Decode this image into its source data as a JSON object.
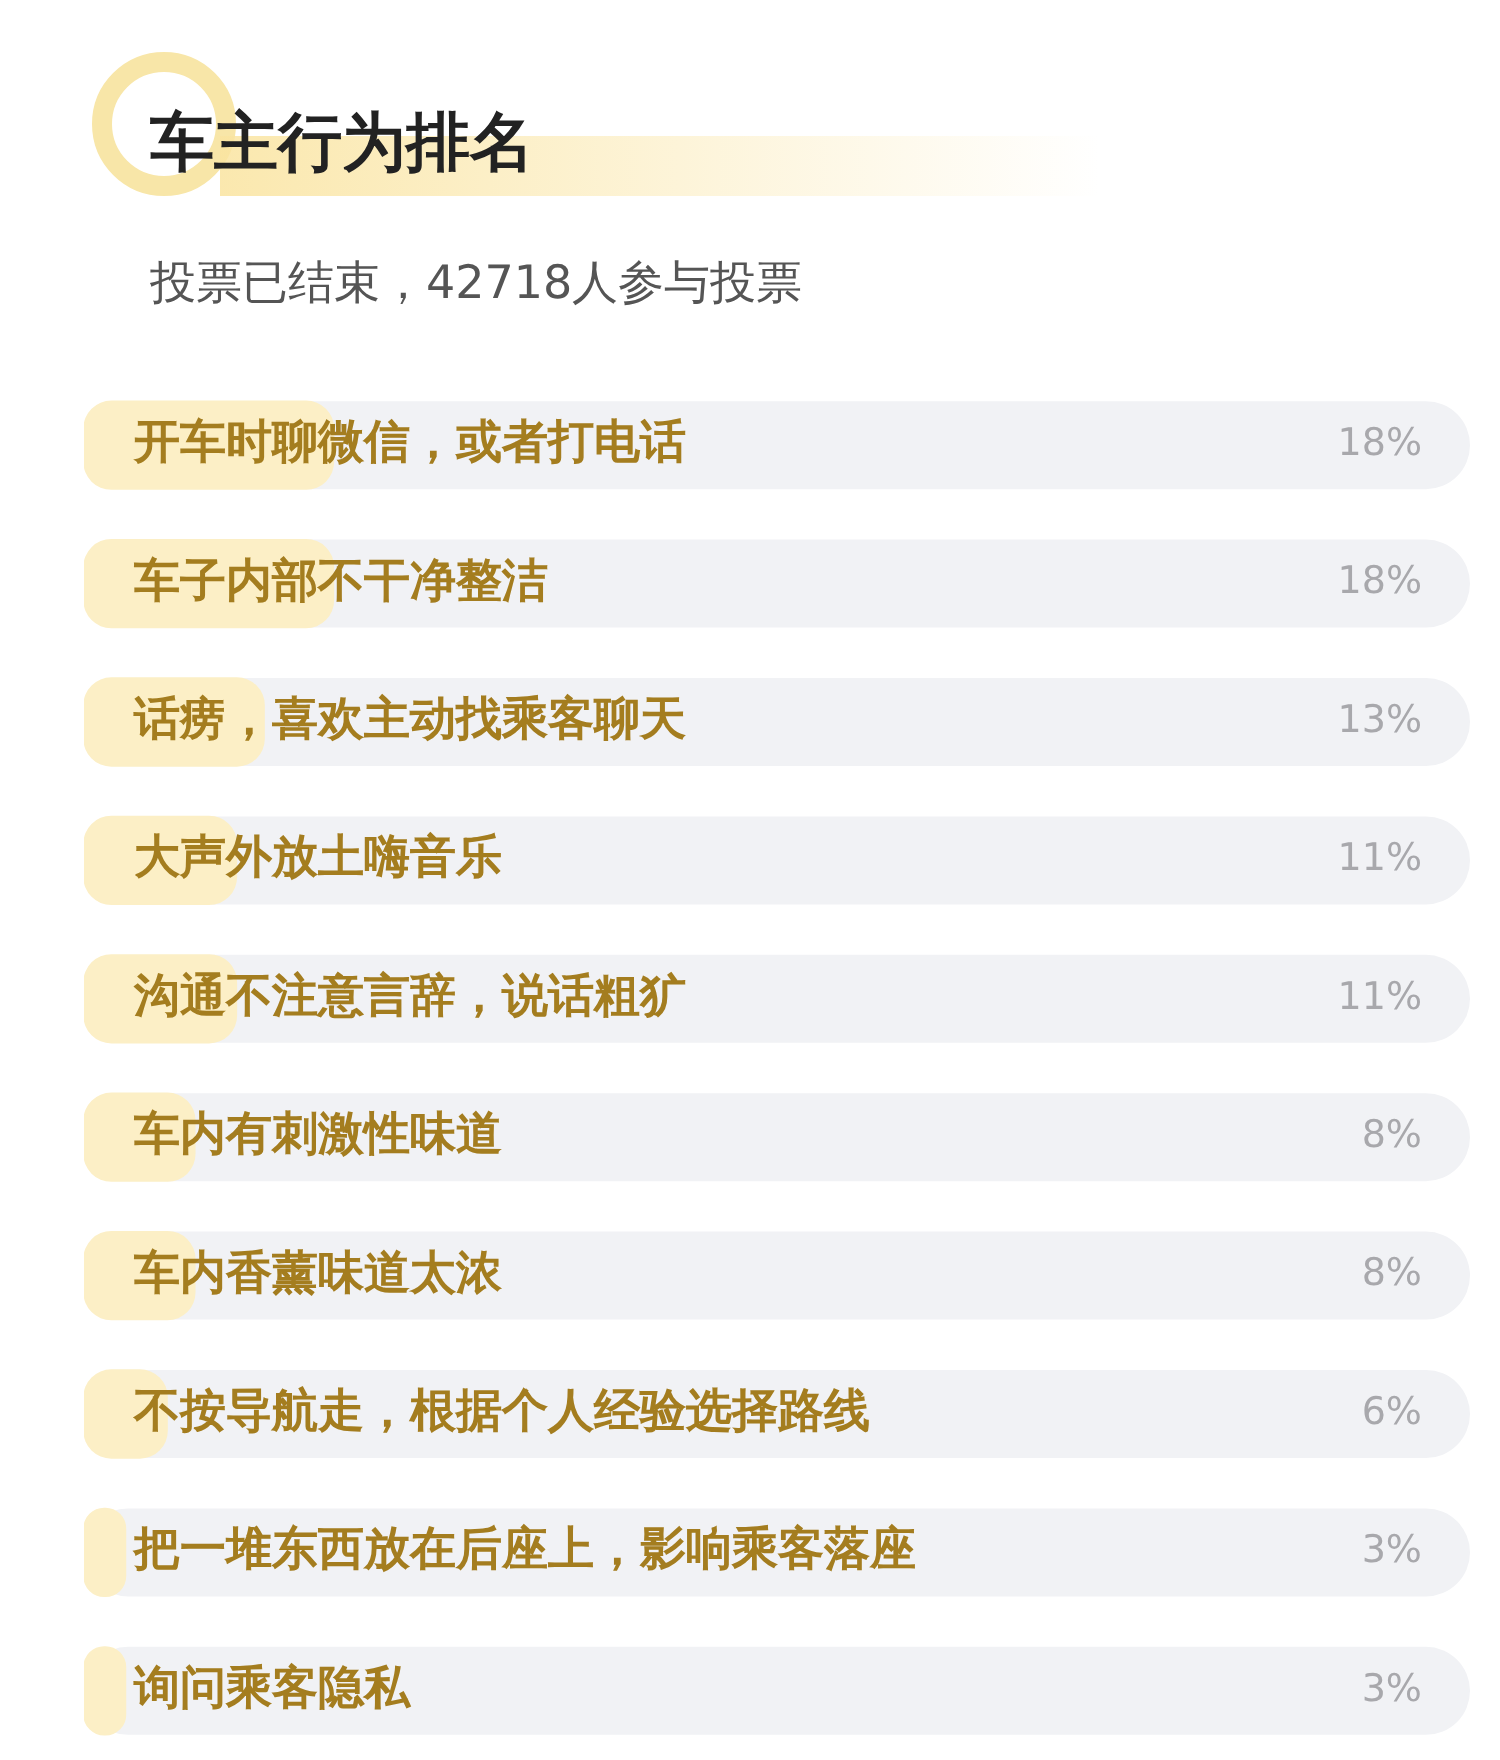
{
  "chart_data": {
    "type": "bar",
    "orientation": "horizontal",
    "title": "车主行为排名",
    "subtitle": "投票已结束，42718人参与投票",
    "categories": [
      "开车时聊微信，或者打电话",
      "车子内部不干净整洁",
      "话痨，喜欢主动找乘客聊天",
      "大声外放土嗨音乐",
      "沟通不注意言辞，说话粗犷",
      "车内有刺激性味道",
      "车内香薰味道太浓",
      "不按导航走，根据个人经验选择路线",
      "把一堆东西放在后座上，影响乘客落座",
      "询问乘客隐私"
    ],
    "values": [
      18,
      18,
      13,
      11,
      11,
      8,
      8,
      6,
      3,
      3
    ],
    "value_labels": [
      "18%",
      "18%",
      "13%",
      "11%",
      "11%",
      "8%",
      "8%",
      "6%",
      "3%",
      "3%"
    ],
    "color": "#fcefc6",
    "xlim": [
      0,
      100
    ],
    "tick_labels": "y"
  }
}
